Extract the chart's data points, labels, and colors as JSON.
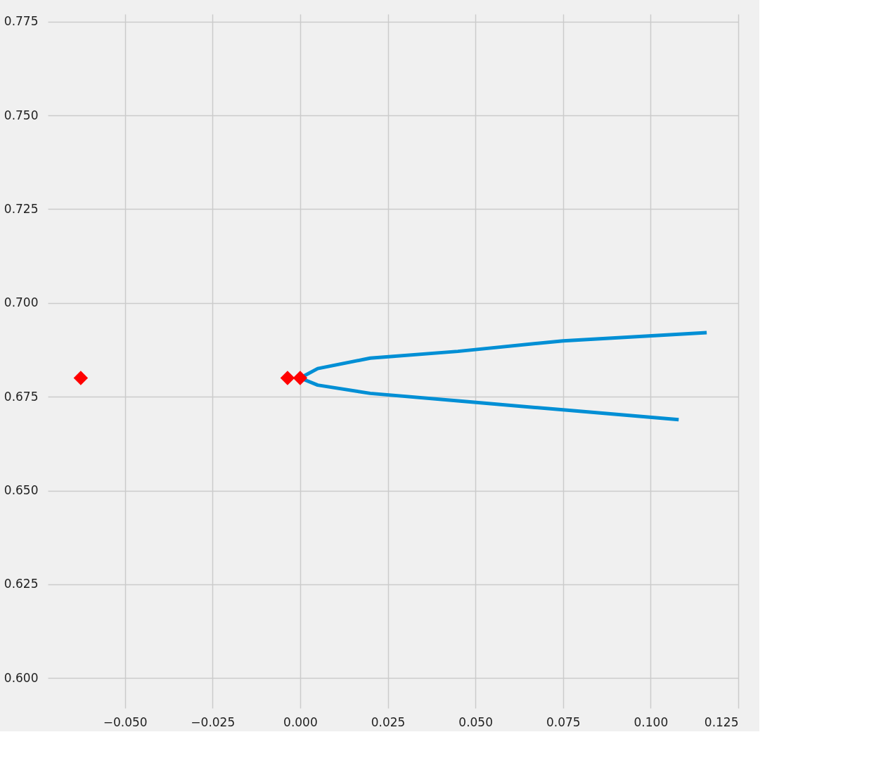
{
  "chart_data": {
    "type": "line",
    "xlim": [
      -0.072,
      0.125
    ],
    "ylim": [
      0.592,
      0.777
    ],
    "xticks": [
      {
        "value": -0.05,
        "label": "−0.050"
      },
      {
        "value": -0.025,
        "label": "−0.025"
      },
      {
        "value": 0,
        "label": "0.000"
      },
      {
        "value": 0.025,
        "label": "0.025"
      },
      {
        "value": 0.05,
        "label": "0.050"
      },
      {
        "value": 0.075,
        "label": "0.075"
      },
      {
        "value": 0.1,
        "label": "0.100"
      },
      {
        "value": 0.125,
        "label": "0.125"
      }
    ],
    "yticks": [
      {
        "value": 0.6,
        "label": "0.600"
      },
      {
        "value": 0.625,
        "label": "0.625"
      },
      {
        "value": 0.65,
        "label": "0.650"
      },
      {
        "value": 0.675,
        "label": "0.675"
      },
      {
        "value": 0.7,
        "label": "0.700"
      },
      {
        "value": 0.725,
        "label": "0.725"
      },
      {
        "value": 0.75,
        "label": "0.750"
      },
      {
        "value": 0.775,
        "label": "0.775"
      }
    ],
    "grid": true,
    "series": [
      {
        "color": "#008fd5",
        "line_style": "solid",
        "marker": "none",
        "x": [
          0.108,
          0.075,
          0.045,
          0.02,
          0.005,
          0.0,
          0.005,
          0.02,
          0.045,
          0.075,
          0.116
        ],
        "values": [
          0.6689,
          0.6715,
          0.6739,
          0.6759,
          0.6781,
          0.68,
          0.6825,
          0.6853,
          0.6871,
          0.6899,
          0.6921
        ]
      },
      {
        "type": "scatter",
        "color": "#ff0000",
        "marker": "diamond",
        "x": [
          -0.0626,
          -0.0036,
          0.0
        ],
        "values": [
          0.68,
          0.68,
          0.68
        ]
      }
    ]
  }
}
